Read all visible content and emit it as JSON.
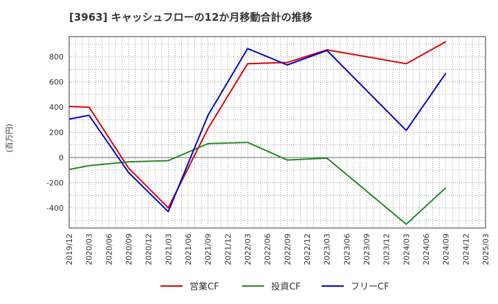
{
  "chart_data": {
    "type": "line",
    "title": "[3963]  キャッシュフローの12か月移動合計の推移",
    "ylabel": "(百万円)",
    "xlabel": "",
    "ylim": [
      -560,
      960
    ],
    "yticks": [
      -400,
      -200,
      0,
      200,
      400,
      600,
      800
    ],
    "x_tick_labels": [
      "2019/12",
      "2020/03",
      "2020/06",
      "2020/09",
      "2020/12",
      "2021/03",
      "2021/06",
      "2021/09",
      "2021/12",
      "2022/03",
      "2022/06",
      "2022/09",
      "2022/12",
      "2023/03",
      "2023/06",
      "2023/09",
      "2023/12",
      "2024/03",
      "2024/06",
      "2024/09",
      "2024/12",
      "2025/03"
    ],
    "grid": true,
    "legend_position": "bottom",
    "series": [
      {
        "name": "営業CF",
        "color": "#dd0000",
        "x": [
          "2019/12",
          "2020/03",
          "2020/09",
          "2021/03",
          "2021/09",
          "2022/03",
          "2022/09",
          "2023/03",
          "2024/03",
          "2024/09"
        ],
        "values": [
          405,
          400,
          -85,
          -400,
          230,
          745,
          755,
          855,
          745,
          920
        ]
      },
      {
        "name": "投資CF",
        "color": "#228822",
        "x": [
          "2019/12",
          "2020/03",
          "2020/09",
          "2021/03",
          "2021/09",
          "2022/03",
          "2022/09",
          "2023/03",
          "2024/03",
          "2024/09"
        ],
        "values": [
          -95,
          -65,
          -35,
          -25,
          110,
          120,
          -20,
          -5,
          -530,
          -240
        ]
      },
      {
        "name": "フリーCF",
        "color": "#0000cc",
        "x": [
          "2019/12",
          "2020/03",
          "2020/09",
          "2021/03",
          "2021/09",
          "2022/03",
          "2022/09",
          "2023/03",
          "2024/03",
          "2024/09"
        ],
        "values": [
          305,
          335,
          -120,
          -430,
          335,
          865,
          735,
          850,
          215,
          670
        ]
      }
    ]
  }
}
